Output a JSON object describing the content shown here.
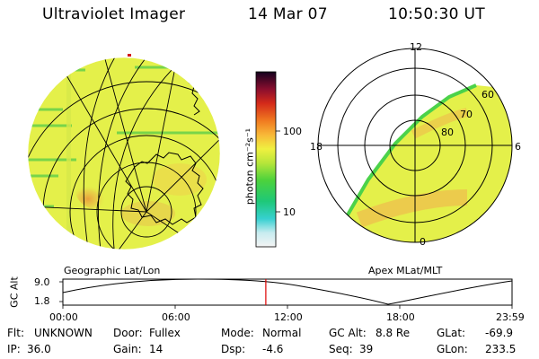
{
  "header": {
    "title": "Ultraviolet Imager",
    "date": "14 Mar 07",
    "time": "10:50:30 UT"
  },
  "colorbar": {
    "ticks": [
      "100",
      "10"
    ],
    "unit_label": "photon cm⁻²s⁻¹"
  },
  "polar_plot": {
    "mlt_labels": [
      "12",
      "18",
      "6",
      "0"
    ],
    "mlat_labels": [
      "60",
      "70",
      "80"
    ]
  },
  "projection_labels": {
    "left": "Geographic Lat/Lon",
    "right": "Apex MLat/MLT"
  },
  "altitude_plot": {
    "axis_label": "GC Alt",
    "y_ticks": [
      "9.0",
      "1.8"
    ],
    "time_ticks": [
      "00:00",
      "06:00",
      "12:00",
      "18:00",
      "23:59"
    ],
    "current_time_fraction": 0.4518
  },
  "info": {
    "flt_label": "Flt:",
    "flt": "UNKNOWN",
    "ip_label": "IP:",
    "ip": "36.0",
    "door_label": "Door:",
    "door": "Fullex",
    "gain_label": "Gain:",
    "gain": "14",
    "mode_label": "Mode:",
    "mode": "Normal",
    "dsp_label": "Dsp:",
    "dsp": "-4.6",
    "gcalt_label": "GC Alt:",
    "gcalt": "8.8 Re",
    "seq_label": "Seq:",
    "seq": "39",
    "glat_label": "GLat:",
    "glat": "-69.9",
    "glon_label": "GLon:",
    "glon": "233.5"
  },
  "colors": {
    "background_emission": "#e4f04a",
    "aurora_emission": "#f0a63c",
    "time_marker": "#dd0000"
  }
}
